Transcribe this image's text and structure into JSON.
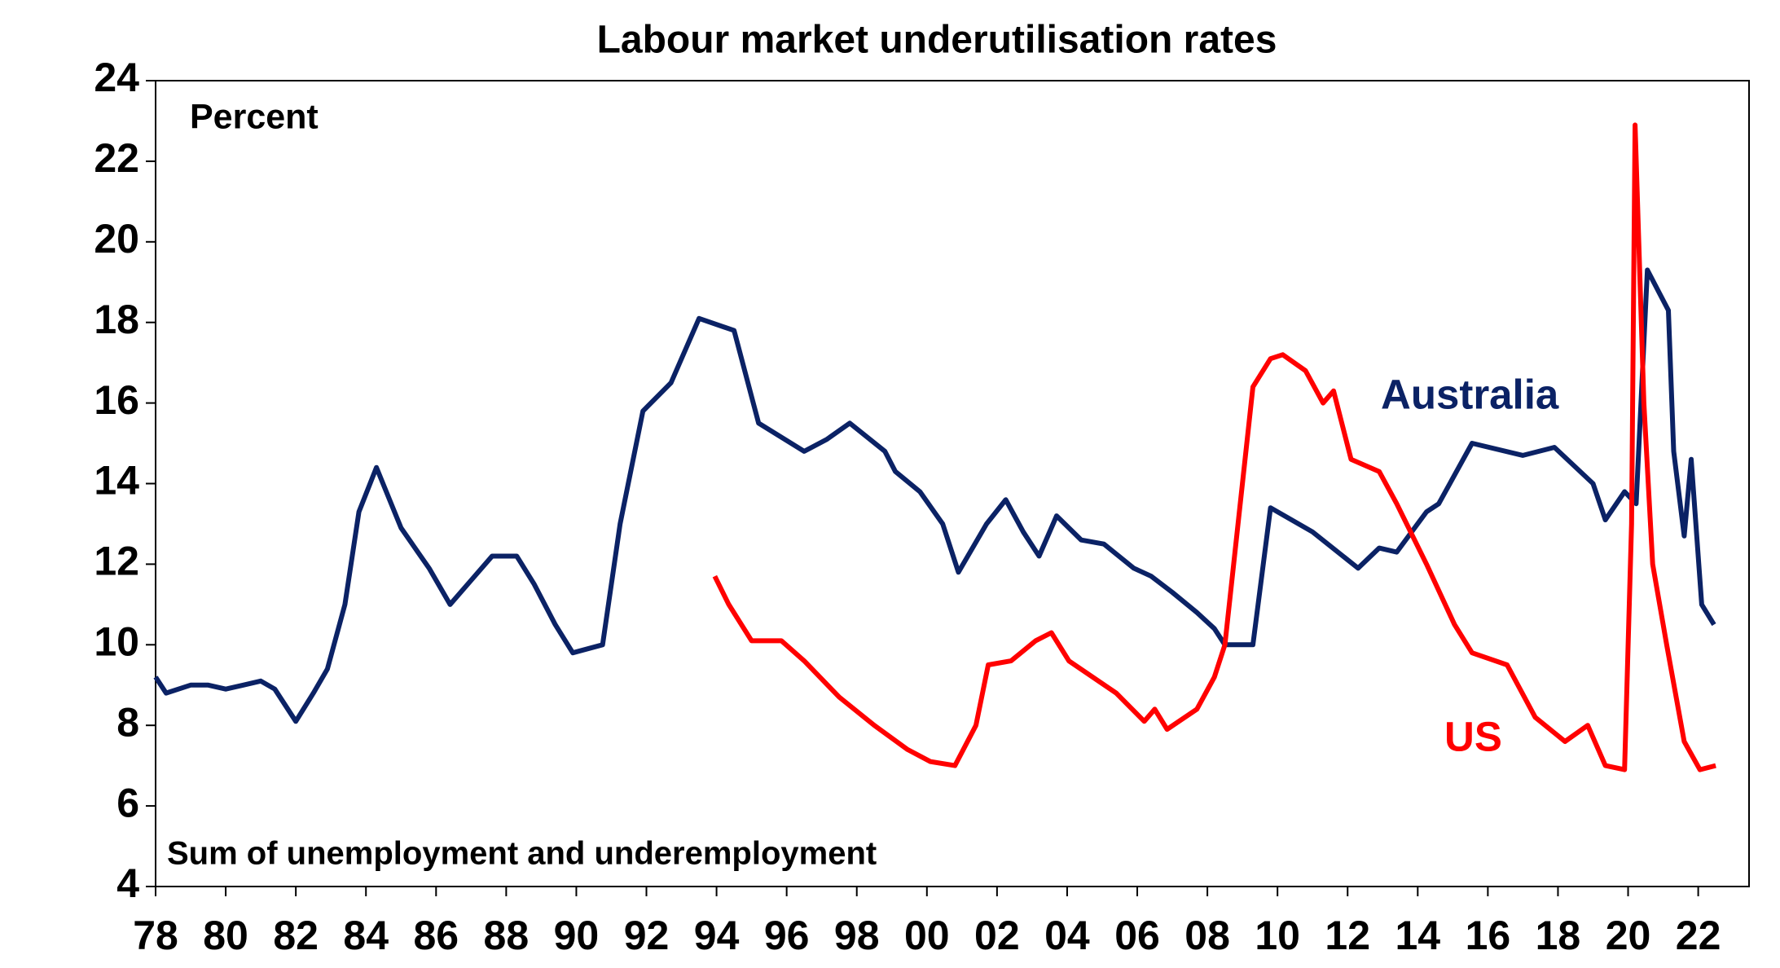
{
  "chart_data": {
    "type": "line",
    "title": "Labour market underutilisation rates",
    "annotations": [
      "Percent",
      "Sum of unemployment and underemployment"
    ],
    "xlim": [
      1978,
      2023.45
    ],
    "ylim": [
      4,
      24
    ],
    "yticks": [
      4,
      6,
      8,
      10,
      12,
      14,
      16,
      18,
      20,
      22,
      24
    ],
    "xticks": [
      {
        "value": 1978,
        "label": "78"
      },
      {
        "value": 1980,
        "label": "80"
      },
      {
        "value": 1982,
        "label": "82"
      },
      {
        "value": 1984,
        "label": "84"
      },
      {
        "value": 1986,
        "label": "86"
      },
      {
        "value": 1988,
        "label": "88"
      },
      {
        "value": 1990,
        "label": "90"
      },
      {
        "value": 1992,
        "label": "92"
      },
      {
        "value": 1994,
        "label": "94"
      },
      {
        "value": 1996,
        "label": "96"
      },
      {
        "value": 1998,
        "label": "98"
      },
      {
        "value": 2000,
        "label": "00"
      },
      {
        "value": 2002,
        "label": "02"
      },
      {
        "value": 2004,
        "label": "04"
      },
      {
        "value": 2006,
        "label": "06"
      },
      {
        "value": 2008,
        "label": "08"
      },
      {
        "value": 2010,
        "label": "10"
      },
      {
        "value": 2012,
        "label": "12"
      },
      {
        "value": 2014,
        "label": "14"
      },
      {
        "value": 2016,
        "label": "16"
      },
      {
        "value": 2018,
        "label": "18"
      },
      {
        "value": 2020,
        "label": "20"
      },
      {
        "value": 2022,
        "label": "22"
      }
    ],
    "series": [
      {
        "name": "Australia",
        "color": "#0b2265",
        "x": [
          1978,
          1978.3,
          1979,
          1979.5,
          1980,
          1980.5,
          1981,
          1981.4,
          1982,
          1982.5,
          1982.9,
          1983.4,
          1983.8,
          1984.3,
          1985,
          1985.8,
          1986.4,
          1987.0,
          1987.6,
          1988.3,
          1988.8,
          1989.4,
          1989.9,
          1990.75,
          1991.25,
          1991.9,
          1992.7,
          1993.5,
          1994.5,
          1995.2,
          1996.5,
          1997.15,
          1997.8,
          1998.8,
          1999.1,
          1999.8,
          2000.45,
          2000.9,
          2001.7,
          2002.25,
          2002.75,
          2003.2,
          2003.7,
          2004.4,
          2005.05,
          2005.9,
          2006.4,
          2007.0,
          2007.7,
          2008.2,
          2008.5,
          2009.3,
          2009.8,
          2011.0,
          2012.3,
          2012.9,
          2013.4,
          2014.25,
          2014.6,
          2015.55,
          2017.0,
          2017.9,
          2019.0,
          2019.35,
          2019.9,
          2020.23,
          2020.55,
          2021.15,
          2021.3,
          2021.6,
          2021.8,
          2022.1,
          2022.45
        ],
        "values": [
          9.2,
          8.8,
          9.0,
          9.0,
          8.9,
          9.0,
          9.1,
          8.9,
          8.1,
          8.8,
          9.4,
          11.0,
          13.3,
          14.4,
          12.9,
          11.9,
          11.0,
          11.6,
          12.2,
          12.2,
          11.5,
          10.5,
          9.8,
          10.0,
          13.0,
          15.8,
          16.5,
          18.1,
          17.8,
          15.5,
          14.8,
          15.1,
          15.5,
          14.8,
          14.3,
          13.8,
          13.0,
          11.8,
          13.0,
          13.6,
          12.8,
          12.2,
          13.2,
          12.6,
          12.5,
          11.9,
          11.7,
          11.3,
          10.8,
          10.4,
          10.0,
          10.0,
          13.4,
          12.8,
          11.9,
          12.4,
          12.3,
          13.3,
          13.5,
          15.0,
          14.7,
          14.9,
          14.0,
          13.1,
          13.8,
          13.5,
          19.3,
          18.3,
          14.8,
          12.7,
          14.6,
          11.0,
          10.5
        ]
      },
      {
        "name": "US",
        "color": "#ff0000",
        "x": [
          1993.95,
          1994.35,
          1995.0,
          1995.85,
          1996.5,
          1997.5,
          1998.5,
          1999.45,
          2000.1,
          2000.8,
          2001.4,
          2001.75,
          2002.4,
          2003.1,
          2003.55,
          2004.05,
          2005.4,
          2006.2,
          2006.5,
          2006.85,
          2007.7,
          2008.2,
          2008.5,
          2009.0,
          2009.3,
          2009.8,
          2010.15,
          2010.8,
          2011.3,
          2011.6,
          2012.1,
          2012.9,
          2013.4,
          2014.25,
          2015.05,
          2015.55,
          2016.55,
          2017.35,
          2018.2,
          2018.85,
          2019.35,
          2019.9,
          2020.1,
          2020.2,
          2020.45,
          2020.7,
          2021.1,
          2021.6,
          2022.05,
          2022.5
        ],
        "values": [
          11.7,
          11.0,
          10.1,
          10.1,
          9.6,
          8.7,
          8.0,
          7.4,
          7.1,
          7.0,
          8.0,
          9.5,
          9.6,
          10.1,
          10.3,
          9.6,
          8.8,
          8.1,
          8.4,
          7.9,
          8.4,
          9.2,
          10.0,
          14.0,
          16.4,
          17.1,
          17.2,
          16.8,
          16.0,
          16.3,
          14.6,
          14.3,
          13.5,
          12.0,
          10.5,
          9.8,
          9.5,
          8.2,
          7.6,
          8.0,
          7.0,
          6.9,
          13.0,
          22.9,
          16.0,
          12.0,
          10.0,
          7.6,
          6.9,
          7.0
        ]
      }
    ]
  }
}
